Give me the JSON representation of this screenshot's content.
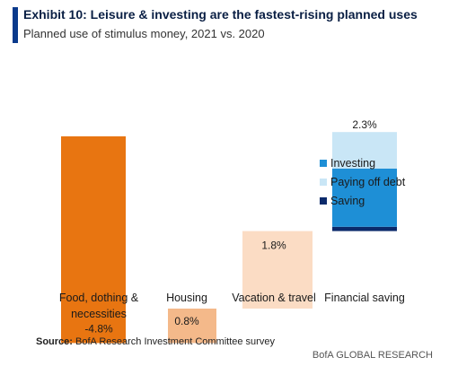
{
  "header": {
    "title": "Exhibit 10: Leisure & investing are the fastest-rising planned uses",
    "subtitle": "Planned use of stimulus money, 2021 vs. 2020"
  },
  "footer": {
    "source_label": "Source:",
    "source_text": "BofA Research Investment Committee survey",
    "brand": "BofA GLOBAL RESEARCH"
  },
  "colors": {
    "accent": "#0a3a8c",
    "food": "#e87511",
    "housing": "#f4b98a",
    "vacation": "#fbdcc4",
    "investing": "#1e8fd6",
    "paying_off_debt": "#c9e6f6",
    "saving": "#0b2a6b"
  },
  "chart_data": {
    "type": "bar",
    "subtype": "waterfall",
    "categories": [
      "Food, dothing & necessities",
      "Housing",
      "Vacation & travel",
      "Financial saving"
    ],
    "category_lines": [
      [
        "Food, dothing &",
        "necessities"
      ],
      [
        "Housing"
      ],
      [
        "Vacation & travel"
      ],
      [
        "Financial saving"
      ]
    ],
    "values": [
      -4.8,
      0.8,
      1.8,
      2.3
    ],
    "data_labels": [
      "-4.8%",
      "0.8%",
      "1.8%",
      "2.3%"
    ],
    "financial_saving_breakdown": [
      {
        "name": "Investing",
        "value": 1.35
      },
      {
        "name": "Paying off debt",
        "value": 0.85
      },
      {
        "name": "Saving",
        "value": 0.1
      }
    ],
    "legend": [
      "Investing",
      "Paying off debt",
      "Saving"
    ],
    "legend_position": "right",
    "grid": false
  }
}
